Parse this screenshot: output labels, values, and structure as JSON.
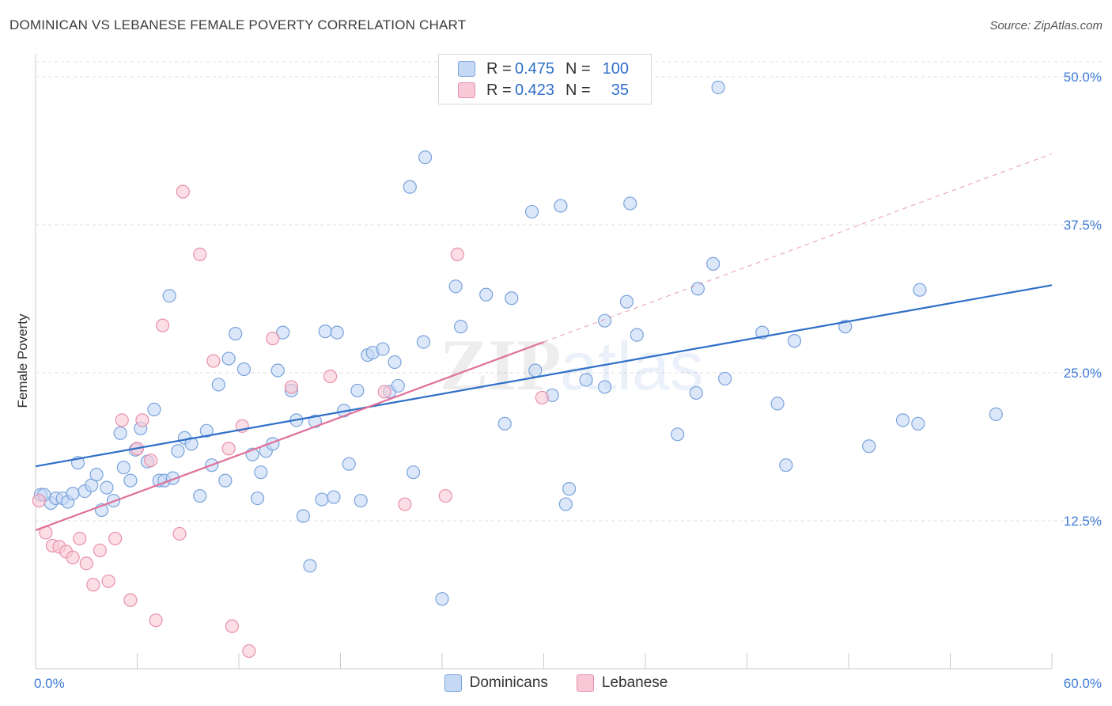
{
  "title": "DOMINICAN VS LEBANESE FEMALE POVERTY CORRELATION CHART",
  "source": "Source: ZipAtlas.com",
  "watermark": "ZIPatlas",
  "legend": {
    "rows": [
      {
        "r_label": "R =",
        "r_value": "0.475",
        "n_label": "N =",
        "n_value": "100"
      },
      {
        "r_label": "R =",
        "r_value": "0.423",
        "n_label": "N =",
        "n_value": "35"
      }
    ]
  },
  "bottom_legend": {
    "dominicans": "Dominicans",
    "lebanese": "Lebanese"
  },
  "colors": {
    "dominicans_fill": "#c5d9f5",
    "dominicans_stroke": "#7aa3dc",
    "dominicans_line": "#2f6fc8",
    "lebanese_fill": "#f8c8d6",
    "lebanese_stroke": "#e890aa",
    "lebanese_line": "#e07098"
  },
  "chart_data": {
    "type": "scatter",
    "title": "DOMINICAN VS LEBANESE FEMALE POVERTY CORRELATION CHART",
    "xlabel": "",
    "ylabel": "Female Poverty",
    "xlim": [
      0,
      60
    ],
    "ylim": [
      0,
      50
    ],
    "x_tick_labels": [
      "0.0%",
      "60.0%"
    ],
    "y_ticks": [
      12.5,
      25.0,
      37.5,
      50.0
    ],
    "y_tick_labels": [
      "12.5%",
      "25.0%",
      "37.5%",
      "50.0%"
    ],
    "grid": true,
    "legend_position": "top-center",
    "series": [
      {
        "name": "Dominicans",
        "r": 0.475,
        "n": 100,
        "trend": {
          "x": [
            0,
            60
          ],
          "y": [
            17.1,
            32.4
          ]
        },
        "points": [
          [
            0.3,
            14.7
          ],
          [
            0.9,
            14.0
          ],
          [
            1.2,
            14.4
          ],
          [
            1.6,
            14.4
          ],
          [
            1.9,
            14.1
          ],
          [
            2.2,
            14.8
          ],
          [
            2.5,
            17.4
          ],
          [
            2.9,
            15.0
          ],
          [
            3.3,
            15.5
          ],
          [
            3.6,
            16.4
          ],
          [
            3.9,
            13.4
          ],
          [
            4.2,
            15.3
          ],
          [
            4.6,
            14.2
          ],
          [
            5.0,
            19.9
          ],
          [
            5.2,
            17.0
          ],
          [
            5.6,
            15.9
          ],
          [
            5.9,
            18.5
          ],
          [
            6.2,
            20.3
          ],
          [
            6.6,
            17.5
          ],
          [
            7.0,
            21.9
          ],
          [
            7.3,
            15.9
          ],
          [
            7.6,
            15.9
          ],
          [
            8.1,
            16.1
          ],
          [
            8.4,
            18.4
          ],
          [
            8.8,
            19.5
          ],
          [
            9.2,
            19.0
          ],
          [
            7.9,
            31.5
          ],
          [
            9.7,
            14.6
          ],
          [
            10.1,
            20.1
          ],
          [
            10.4,
            17.2
          ],
          [
            10.8,
            24.0
          ],
          [
            11.2,
            15.9
          ],
          [
            11.4,
            26.2
          ],
          [
            11.8,
            28.3
          ],
          [
            12.3,
            25.3
          ],
          [
            12.8,
            18.1
          ],
          [
            13.1,
            14.4
          ],
          [
            13.3,
            16.6
          ],
          [
            13.6,
            18.4
          ],
          [
            14.0,
            19.0
          ],
          [
            14.3,
            25.2
          ],
          [
            14.6,
            28.4
          ],
          [
            15.1,
            23.5
          ],
          [
            15.4,
            21.0
          ],
          [
            15.8,
            12.9
          ],
          [
            16.2,
            8.7
          ],
          [
            16.5,
            20.9
          ],
          [
            16.9,
            14.3
          ],
          [
            17.1,
            28.5
          ],
          [
            17.6,
            14.5
          ],
          [
            17.8,
            28.4
          ],
          [
            18.2,
            21.8
          ],
          [
            18.5,
            17.3
          ],
          [
            19.0,
            23.5
          ],
          [
            19.2,
            14.2
          ],
          [
            19.6,
            26.5
          ],
          [
            19.9,
            26.7
          ],
          [
            20.5,
            27.0
          ],
          [
            20.9,
            23.4
          ],
          [
            21.2,
            25.9
          ],
          [
            21.4,
            23.9
          ],
          [
            22.3,
            16.6
          ],
          [
            22.9,
            27.6
          ],
          [
            22.1,
            40.7
          ],
          [
            23.0,
            43.2
          ],
          [
            24.0,
            5.9
          ],
          [
            24.8,
            32.3
          ],
          [
            25.1,
            28.9
          ],
          [
            26.6,
            31.6
          ],
          [
            27.7,
            20.7
          ],
          [
            28.1,
            31.3
          ],
          [
            29.3,
            38.6
          ],
          [
            29.5,
            25.2
          ],
          [
            30.5,
            23.1
          ],
          [
            31.0,
            39.1
          ],
          [
            31.3,
            13.9
          ],
          [
            31.5,
            15.2
          ],
          [
            32.5,
            24.4
          ],
          [
            33.6,
            23.8
          ],
          [
            33.6,
            29.4
          ],
          [
            34.9,
            31.0
          ],
          [
            35.1,
            39.3
          ],
          [
            35.5,
            28.2
          ],
          [
            37.9,
            19.8
          ],
          [
            39.0,
            23.3
          ],
          [
            39.1,
            32.1
          ],
          [
            40.0,
            34.2
          ],
          [
            40.3,
            49.1
          ],
          [
            40.7,
            24.5
          ],
          [
            42.9,
            28.4
          ],
          [
            43.8,
            22.4
          ],
          [
            44.3,
            17.2
          ],
          [
            44.8,
            27.7
          ],
          [
            47.8,
            28.9
          ],
          [
            49.2,
            18.8
          ],
          [
            51.2,
            21.0
          ],
          [
            52.2,
            32.0
          ],
          [
            52.1,
            20.7
          ],
          [
            56.7,
            21.5
          ],
          [
            0.5,
            14.7
          ]
        ]
      },
      {
        "name": "Lebanese",
        "r": 0.423,
        "n": 35,
        "trend": {
          "x": [
            0,
            30
          ],
          "y": [
            11.7,
            27.6
          ]
        },
        "trend_extension": {
          "x": [
            30,
            60
          ],
          "y": [
            27.6,
            43.5
          ]
        },
        "points": [
          [
            0.2,
            14.2
          ],
          [
            0.6,
            11.5
          ],
          [
            1.0,
            10.4
          ],
          [
            1.4,
            10.3
          ],
          [
            1.8,
            9.9
          ],
          [
            2.2,
            9.4
          ],
          [
            2.6,
            11.0
          ],
          [
            3.0,
            8.9
          ],
          [
            3.4,
            7.1
          ],
          [
            3.8,
            10.0
          ],
          [
            4.3,
            7.4
          ],
          [
            4.7,
            11.0
          ],
          [
            5.1,
            21.0
          ],
          [
            5.6,
            5.8
          ],
          [
            6.0,
            18.6
          ],
          [
            6.3,
            21.0
          ],
          [
            6.8,
            17.6
          ],
          [
            7.1,
            4.1
          ],
          [
            7.5,
            29.0
          ],
          [
            8.5,
            11.4
          ],
          [
            8.7,
            40.3
          ],
          [
            9.7,
            35.0
          ],
          [
            10.5,
            26.0
          ],
          [
            11.4,
            18.6
          ],
          [
            11.6,
            3.6
          ],
          [
            12.2,
            20.5
          ],
          [
            12.6,
            1.5
          ],
          [
            14.0,
            27.9
          ],
          [
            15.1,
            23.8
          ],
          [
            17.4,
            24.7
          ],
          [
            20.6,
            23.4
          ],
          [
            21.8,
            13.9
          ],
          [
            24.2,
            14.6
          ],
          [
            24.9,
            35.0
          ],
          [
            29.9,
            22.9
          ]
        ]
      }
    ]
  }
}
